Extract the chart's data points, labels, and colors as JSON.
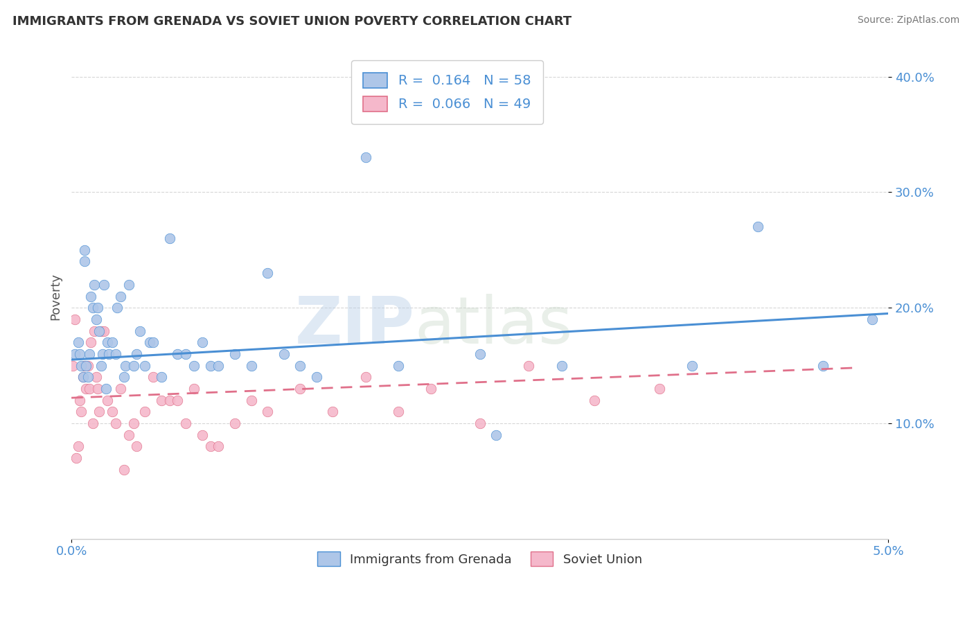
{
  "title": "IMMIGRANTS FROM GRENADA VS SOVIET UNION POVERTY CORRELATION CHART",
  "source": "Source: ZipAtlas.com",
  "ylabel": "Poverty",
  "xlim": [
    0.0,
    5.0
  ],
  "ylim": [
    0.0,
    42.0
  ],
  "yticks": [
    10.0,
    20.0,
    30.0,
    40.0
  ],
  "blue_color": "#aec6e8",
  "blue_line_color": "#4a8fd4",
  "pink_color": "#f5b8cb",
  "pink_line_color": "#e0708a",
  "R_blue": 0.164,
  "N_blue": 58,
  "R_pink": 0.066,
  "N_pink": 49,
  "legend_label_blue": "Immigrants from Grenada",
  "legend_label_pink": "Soviet Union",
  "watermark_left": "ZIP",
  "watermark_right": "atlas",
  "background_color": "#ffffff",
  "grid_color": "#cccccc",
  "title_color": "#333333",
  "axis_label_color": "#4a8fd4",
  "blue_x": [
    0.02,
    0.04,
    0.05,
    0.06,
    0.07,
    0.08,
    0.08,
    0.09,
    0.1,
    0.11,
    0.12,
    0.13,
    0.14,
    0.15,
    0.16,
    0.17,
    0.18,
    0.19,
    0.2,
    0.21,
    0.22,
    0.23,
    0.25,
    0.27,
    0.28,
    0.3,
    0.32,
    0.33,
    0.35,
    0.38,
    0.4,
    0.42,
    0.45,
    0.48,
    0.5,
    0.55,
    0.6,
    0.65,
    0.7,
    0.75,
    0.8,
    0.85,
    0.9,
    1.0,
    1.1,
    1.2,
    1.3,
    1.4,
    1.5,
    1.8,
    2.0,
    2.5,
    2.6,
    3.0,
    3.8,
    4.2,
    4.6,
    4.9
  ],
  "blue_y": [
    16,
    17,
    16,
    15,
    14,
    25,
    24,
    15,
    14,
    16,
    21,
    20,
    22,
    19,
    20,
    18,
    15,
    16,
    22,
    13,
    17,
    16,
    17,
    16,
    20,
    21,
    14,
    15,
    22,
    15,
    16,
    18,
    15,
    17,
    17,
    14,
    26,
    16,
    16,
    15,
    17,
    15,
    15,
    16,
    15,
    23,
    16,
    15,
    14,
    33,
    15,
    16,
    9,
    15,
    15,
    27,
    15,
    19
  ],
  "pink_x": [
    0.01,
    0.02,
    0.03,
    0.04,
    0.05,
    0.06,
    0.07,
    0.08,
    0.09,
    0.1,
    0.11,
    0.12,
    0.13,
    0.14,
    0.15,
    0.16,
    0.17,
    0.18,
    0.2,
    0.22,
    0.25,
    0.27,
    0.3,
    0.32,
    0.35,
    0.38,
    0.4,
    0.45,
    0.5,
    0.55,
    0.6,
    0.65,
    0.7,
    0.75,
    0.8,
    0.85,
    0.9,
    1.0,
    1.1,
    1.2,
    1.4,
    1.6,
    1.8,
    2.0,
    2.2,
    2.5,
    2.8,
    3.2,
    3.6
  ],
  "pink_y": [
    15,
    19,
    7,
    8,
    12,
    11,
    14,
    15,
    13,
    15,
    13,
    17,
    10,
    18,
    14,
    13,
    11,
    18,
    18,
    12,
    11,
    10,
    13,
    6,
    9,
    10,
    8,
    11,
    14,
    12,
    12,
    12,
    10,
    13,
    9,
    8,
    8,
    10,
    12,
    11,
    13,
    11,
    14,
    11,
    13,
    10,
    15,
    12,
    13
  ],
  "blue_line_x0": 0.0,
  "blue_line_x1": 5.0,
  "blue_line_y0": 15.5,
  "blue_line_y1": 19.5,
  "pink_line_x0": 0.0,
  "pink_line_x1": 4.8,
  "pink_line_y0": 12.2,
  "pink_line_y1": 14.8
}
